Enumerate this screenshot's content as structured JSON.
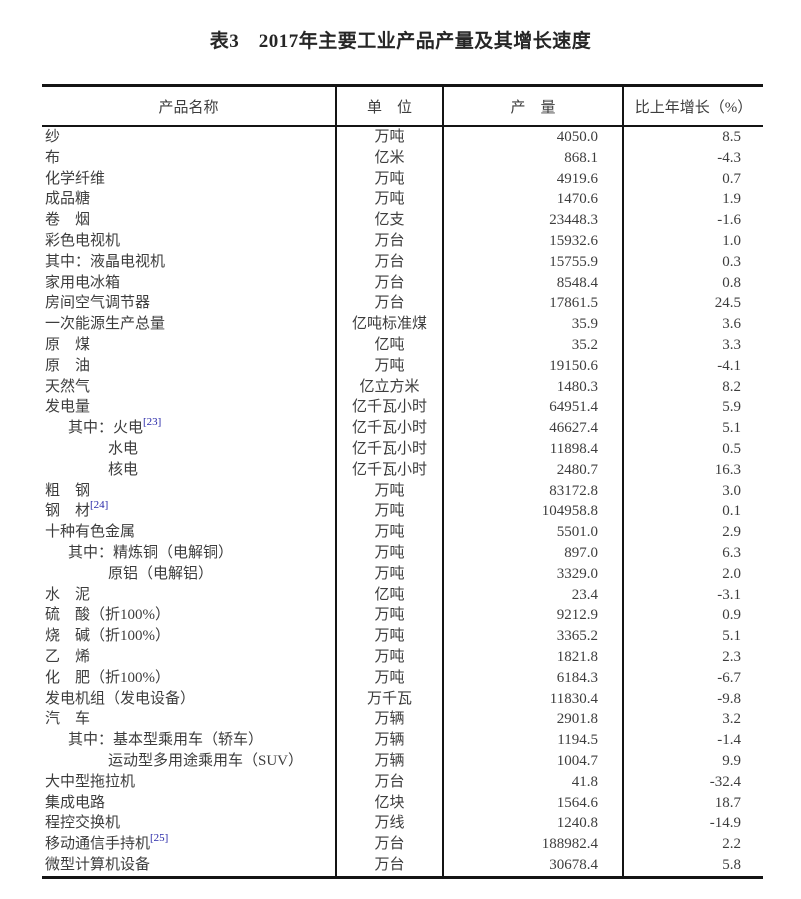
{
  "title": "表3　2017年主要工业产品产量及其增长速度",
  "colors": {
    "text": "#3d3d3d",
    "border": "#141414",
    "footnote_link": "#2828a8",
    "background": "#ffffff"
  },
  "table": {
    "headers": {
      "product": "产品名称",
      "unit": "单　位",
      "output": "产　量",
      "growth": "比上年增长（%）"
    },
    "rows": [
      {
        "name": "纱",
        "sup": "",
        "indent": 0,
        "unit": "万吨",
        "output": "4050.0",
        "growth": "8.5"
      },
      {
        "name": "布",
        "sup": "",
        "indent": 0,
        "unit": "亿米",
        "output": "868.1",
        "growth": "-4.3"
      },
      {
        "name": "化学纤维",
        "sup": "",
        "indent": 0,
        "unit": "万吨",
        "output": "4919.6",
        "growth": "0.7"
      },
      {
        "name": "成品糖",
        "sup": "",
        "indent": 0,
        "unit": "万吨",
        "output": "1470.6",
        "growth": "1.9"
      },
      {
        "name": "卷　烟",
        "sup": "",
        "indent": 0,
        "unit": "亿支",
        "output": "23448.3",
        "growth": "-1.6"
      },
      {
        "name": "彩色电视机",
        "sup": "",
        "indent": 0,
        "unit": "万台",
        "output": "15932.6",
        "growth": "1.0"
      },
      {
        "name": "其中：液晶电视机",
        "sup": "",
        "indent": 0,
        "unit": "万台",
        "output": "15755.9",
        "growth": "0.3"
      },
      {
        "name": "家用电冰箱",
        "sup": "",
        "indent": 0,
        "unit": "万台",
        "output": "8548.4",
        "growth": "0.8"
      },
      {
        "name": "房间空气调节器",
        "sup": "",
        "indent": 0,
        "unit": "万台",
        "output": "17861.5",
        "growth": "24.5"
      },
      {
        "name": "一次能源生产总量",
        "sup": "",
        "indent": 0,
        "unit": "亿吨标准煤",
        "output": "35.9",
        "growth": "3.6"
      },
      {
        "name": "原　煤",
        "sup": "",
        "indent": 0,
        "unit": "亿吨",
        "output": "35.2",
        "growth": "3.3"
      },
      {
        "name": "原　油",
        "sup": "",
        "indent": 0,
        "unit": "万吨",
        "output": "19150.6",
        "growth": "-4.1"
      },
      {
        "name": "天然气",
        "sup": "",
        "indent": 0,
        "unit": "亿立方米",
        "output": "1480.3",
        "growth": "8.2"
      },
      {
        "name": "发电量",
        "sup": "",
        "indent": 0,
        "unit": "亿千瓦小时",
        "output": "64951.4",
        "growth": "5.9"
      },
      {
        "name": "其中：火电",
        "sup": "[23]",
        "indent": 1,
        "unit": "亿千瓦小时",
        "output": "46627.4",
        "growth": "5.1"
      },
      {
        "name": "水电",
        "sup": "",
        "indent": 2,
        "unit": "亿千瓦小时",
        "output": "11898.4",
        "growth": "0.5"
      },
      {
        "name": "核电",
        "sup": "",
        "indent": 2,
        "unit": "亿千瓦小时",
        "output": "2480.7",
        "growth": "16.3"
      },
      {
        "name": "粗　钢",
        "sup": "",
        "indent": 0,
        "unit": "万吨",
        "output": "83172.8",
        "growth": "3.0"
      },
      {
        "name": "钢　材",
        "sup": "[24]",
        "indent": 0,
        "unit": "万吨",
        "output": "104958.8",
        "growth": "0.1"
      },
      {
        "name": "十种有色金属",
        "sup": "",
        "indent": 0,
        "unit": "万吨",
        "output": "5501.0",
        "growth": "2.9"
      },
      {
        "name": "其中：精炼铜（电解铜）",
        "sup": "",
        "indent": 1,
        "unit": "万吨",
        "output": "897.0",
        "growth": "6.3"
      },
      {
        "name": "原铝（电解铝）",
        "sup": "",
        "indent": 2,
        "unit": "万吨",
        "output": "3329.0",
        "growth": "2.0"
      },
      {
        "name": "水　泥",
        "sup": "",
        "indent": 0,
        "unit": "亿吨",
        "output": "23.4",
        "growth": "-3.1"
      },
      {
        "name": "硫　酸（折100%）",
        "sup": "",
        "indent": 0,
        "unit": "万吨",
        "output": "9212.9",
        "growth": "0.9"
      },
      {
        "name": "烧　碱（折100%）",
        "sup": "",
        "indent": 0,
        "unit": "万吨",
        "output": "3365.2",
        "growth": "5.1"
      },
      {
        "name": "乙　烯",
        "sup": "",
        "indent": 0,
        "unit": "万吨",
        "output": "1821.8",
        "growth": "2.3"
      },
      {
        "name": "化　肥（折100%）",
        "sup": "",
        "indent": 0,
        "unit": "万吨",
        "output": "6184.3",
        "growth": "-6.7"
      },
      {
        "name": "发电机组（发电设备）",
        "sup": "",
        "indent": 0,
        "unit": "万千瓦",
        "output": "11830.4",
        "growth": "-9.8"
      },
      {
        "name": "汽　车",
        "sup": "",
        "indent": 0,
        "unit": "万辆",
        "output": "2901.8",
        "growth": "3.2"
      },
      {
        "name": "其中：基本型乘用车（轿车）",
        "sup": "",
        "indent": 1,
        "unit": "万辆",
        "output": "1194.5",
        "growth": "-1.4"
      },
      {
        "name": "运动型多用途乘用车（SUV）",
        "sup": "",
        "indent": 2,
        "unit": "万辆",
        "output": "1004.7",
        "growth": "9.9"
      },
      {
        "name": "大中型拖拉机",
        "sup": "",
        "indent": 0,
        "unit": "万台",
        "output": "41.8",
        "growth": "-32.4"
      },
      {
        "name": "集成电路",
        "sup": "",
        "indent": 0,
        "unit": "亿块",
        "output": "1564.6",
        "growth": "18.7"
      },
      {
        "name": "程控交换机",
        "sup": "",
        "indent": 0,
        "unit": "万线",
        "output": "1240.8",
        "growth": "-14.9"
      },
      {
        "name": "移动通信手持机",
        "sup": "[25]",
        "indent": 0,
        "unit": "万台",
        "output": "188982.4",
        "growth": "2.2"
      },
      {
        "name": "微型计算机设备",
        "sup": "",
        "indent": 0,
        "unit": "万台",
        "output": "30678.4",
        "growth": "5.8"
      }
    ]
  }
}
